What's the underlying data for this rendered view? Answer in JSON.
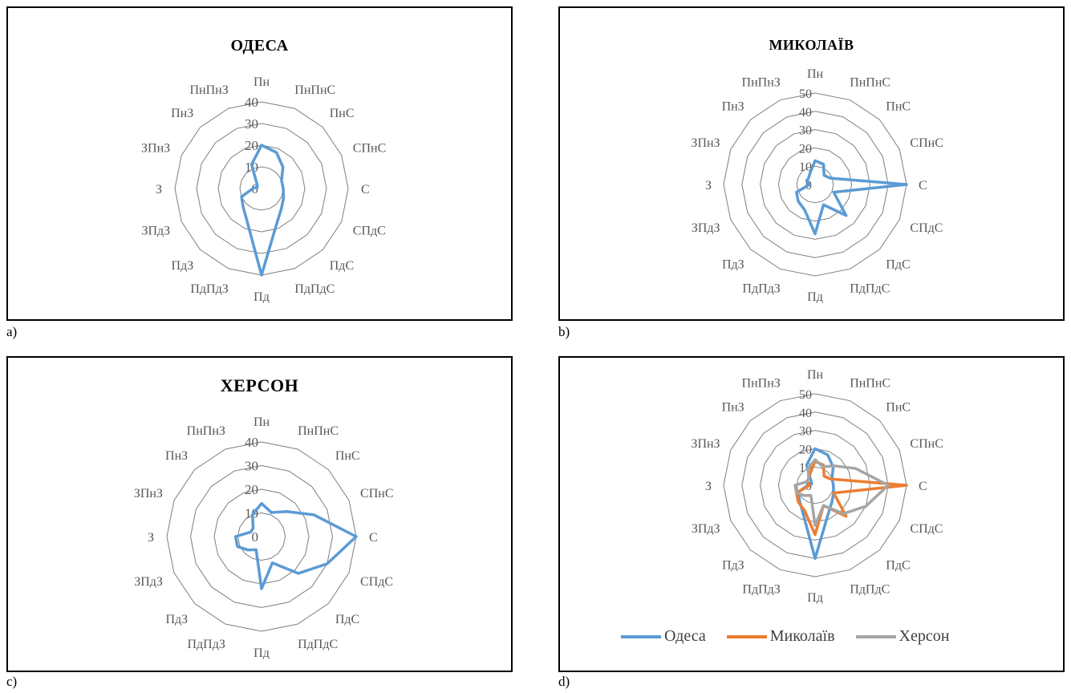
{
  "captions": {
    "a": "a)",
    "b": "b)",
    "c": "c)",
    "d": "d)"
  },
  "directions": [
    "Пн",
    "ПнПнС",
    "ПнС",
    "СПнС",
    "С",
    "СПдС",
    "ПдС",
    "ПдПдС",
    "Пд",
    "ПдПдЗ",
    "ПдЗ",
    "ЗПдЗ",
    "З",
    "ЗПнЗ",
    "ПнЗ",
    "ПнПнЗ"
  ],
  "colors": {
    "odesa": "#5B9BD5",
    "mykolaiv": "#ED7D31",
    "kherson": "#A5A5A5"
  },
  "legend": {
    "odesa": "Одеса",
    "mykolaiv": "Миколаїв",
    "kherson": "Херсон"
  },
  "chart_data": [
    {
      "id": "a",
      "type": "radar",
      "title": "ОДЕСА",
      "rlim": [
        0,
        40
      ],
      "ticks": [
        "0",
        "10",
        "20",
        "30",
        "40"
      ],
      "series": [
        {
          "name": "",
          "color": "#5B9BD5",
          "values": [
            20,
            18,
            14,
            10,
            10,
            11,
            13,
            18,
            40,
            17,
            12,
            10,
            4,
            2,
            3,
            12
          ]
        }
      ]
    },
    {
      "id": "b",
      "type": "radar",
      "title": "МИКОЛАЇВ",
      "rlim": [
        0,
        50
      ],
      "ticks": [
        "0",
        "10",
        "20",
        "30",
        "40",
        "50"
      ],
      "series": [
        {
          "name": "",
          "color": "#5B9BD5",
          "values": [
            13,
            12,
            7,
            9,
            50,
            11,
            24,
            12,
            27,
            15,
            13,
            11,
            3,
            5,
            5,
            7
          ]
        }
      ]
    },
    {
      "id": "c",
      "type": "radar",
      "title": "ХЕРСОН",
      "rlim": [
        0,
        40
      ],
      "ticks": [
        "0",
        "10",
        "20",
        "30",
        "40"
      ],
      "series": [
        {
          "name": "",
          "color": "#5B9BD5",
          "values": [
            14,
            11,
            15,
            24,
            40,
            30,
            22,
            12,
            22,
            6,
            8,
            11,
            11,
            5,
            5,
            10
          ]
        }
      ]
    },
    {
      "id": "d",
      "type": "radar",
      "title": "",
      "rlim": [
        0,
        50
      ],
      "ticks": [
        "0",
        "10",
        "20",
        "30",
        "40",
        "50"
      ],
      "legend_position": "bottom",
      "series": [
        {
          "name": "Одеса",
          "color": "#5B9BD5",
          "values": [
            20,
            18,
            14,
            10,
            10,
            11,
            13,
            18,
            40,
            17,
            12,
            10,
            4,
            2,
            3,
            12
          ]
        },
        {
          "name": "Миколаїв",
          "color": "#ED7D31",
          "values": [
            13,
            12,
            7,
            9,
            50,
            11,
            24,
            12,
            27,
            15,
            13,
            11,
            3,
            5,
            5,
            7
          ]
        },
        {
          "name": "Херсон",
          "color": "#A5A5A5",
          "values": [
            14,
            11,
            15,
            24,
            40,
            30,
            22,
            12,
            22,
            6,
            8,
            11,
            11,
            5,
            5,
            10
          ]
        }
      ]
    }
  ]
}
